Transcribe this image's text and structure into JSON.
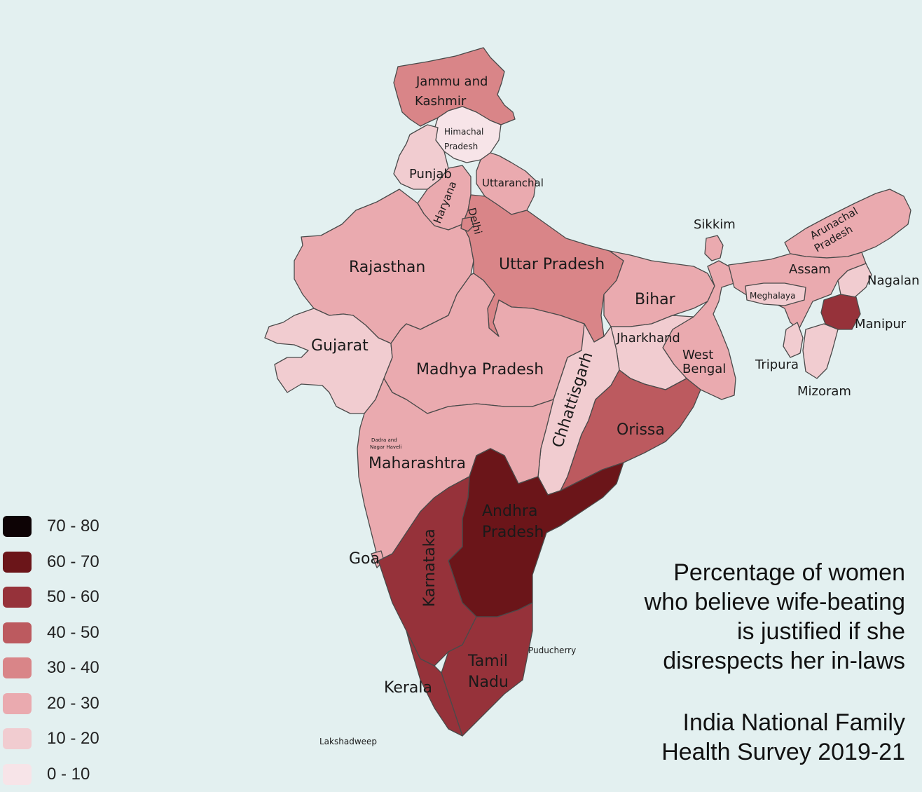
{
  "legend": [
    {
      "label": "70 - 80",
      "color": "#0d0305"
    },
    {
      "label": "60 - 70",
      "color": "#6b1519"
    },
    {
      "label": "50 - 60",
      "color": "#96323a"
    },
    {
      "label": "40 - 50",
      "color": "#bc5a5f"
    },
    {
      "label": "30 - 40",
      "color": "#d98588"
    },
    {
      "label": "20 - 30",
      "color": "#eaaaaf"
    },
    {
      "label": "10 - 20",
      "color": "#f1ccd0"
    },
    {
      "label": "0 - 10",
      "color": "#f7e4e8"
    }
  ],
  "caption": {
    "line1": "Percentage of women",
    "line2": "who believe wife-beating",
    "line3": "is justified if she",
    "line4": "disrespects her in-laws"
  },
  "source": {
    "line1": "India National Family",
    "line2": "Health Survey 2019-21"
  },
  "states": {
    "jammu_kashmir": {
      "line1": "Jammu and",
      "line2": "Kashmir",
      "range": "30 - 40"
    },
    "himachal": {
      "line1": "Himachal",
      "line2": "Pradesh",
      "range": "0 - 10"
    },
    "punjab": {
      "name": "Punjab",
      "range": "10 - 20"
    },
    "haryana": {
      "name": "Haryana",
      "range": "20 - 30"
    },
    "uttaranchal": {
      "name": "Uttaranchal",
      "range": "20 - 30"
    },
    "delhi": {
      "name": "Delhi",
      "range": "30 - 40"
    },
    "rajasthan": {
      "name": "Rajasthan",
      "range": "20 - 30"
    },
    "uttar_pradesh": {
      "name": "Uttar Pradesh",
      "range": "30 - 40"
    },
    "bihar": {
      "name": "Bihar",
      "range": "20 - 30"
    },
    "sikkim": {
      "name": "Sikkim",
      "range": "20 - 30"
    },
    "arunachal": {
      "line1": "Arunachal",
      "line2": "Pradesh",
      "range": "20 - 30"
    },
    "assam": {
      "name": "Assam",
      "range": "20 - 30"
    },
    "meghalaya": {
      "name": "Meghalaya",
      "range": "10 - 20"
    },
    "nagaland": {
      "name": "Nagalan",
      "range": "10 - 20"
    },
    "manipur": {
      "name": "Manipur",
      "range": "50 - 60"
    },
    "tripura": {
      "name": "Tripura",
      "range": "10 - 20"
    },
    "mizoram": {
      "name": "Mizoram",
      "range": "10 - 20"
    },
    "gujarat": {
      "name": "Gujarat",
      "range": "10 - 20"
    },
    "madhya_pradesh": {
      "name": "Madhya Pradesh",
      "range": "20 - 30"
    },
    "jharkhand": {
      "name": "Jharkhand",
      "range": "10 - 20"
    },
    "west_bengal": {
      "line1": "West",
      "line2": "Bengal",
      "range": "20 - 30"
    },
    "chhattisgarh": {
      "name": "Chhattisgarh",
      "range": "10 - 20"
    },
    "orissa": {
      "name": "Orissa",
      "range": "40 - 50"
    },
    "dadra": {
      "line1": "Dadra and",
      "line2": "Nagar Haveli",
      "range": "20 - 30"
    },
    "maharashtra": {
      "name": "Maharashtra",
      "range": "20 - 30"
    },
    "andhra": {
      "line1": "Andhra",
      "line2": "Pradesh",
      "range": "60 - 70"
    },
    "goa": {
      "name": "Goa",
      "range": "20 - 30"
    },
    "karnataka": {
      "name": "Karnataka",
      "range": "50 - 60"
    },
    "tamil_nadu": {
      "line1": "Tamil",
      "line2": "Nadu",
      "range": "50 - 60"
    },
    "kerala": {
      "name": "Kerala",
      "range": "50 - 60"
    },
    "puducherry": {
      "name": "Puducherry",
      "range": "50 - 60"
    },
    "lakshadweep": {
      "name": "Lakshadweep",
      "range": "20 - 30"
    }
  }
}
